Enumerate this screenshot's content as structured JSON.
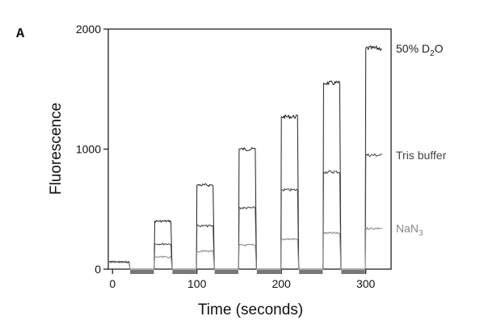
{
  "chart_data": {
    "type": "line",
    "panel_label": "A",
    "title": "",
    "xlabel": "Time (seconds)",
    "ylabel": "Fluorescence",
    "xlim": [
      -5,
      330
    ],
    "ylim": [
      0,
      2000
    ],
    "x_ticks": [
      0,
      100,
      200,
      300
    ],
    "y_ticks": [
      0,
      1000,
      2000
    ],
    "grid": false,
    "off_intervals": [
      [
        20,
        50
      ],
      [
        70,
        100
      ],
      [
        120,
        150
      ],
      [
        170,
        200
      ],
      [
        220,
        250
      ],
      [
        270,
        300
      ]
    ],
    "on_intervals": [
      [
        -5,
        20
      ],
      [
        50,
        70
      ],
      [
        100,
        120
      ],
      [
        150,
        170
      ],
      [
        200,
        220
      ],
      [
        250,
        270
      ],
      [
        300,
        320
      ]
    ],
    "series": [
      {
        "name": "50% D2O",
        "label_main": "50% D",
        "label_sub": "2",
        "label_tail": "O",
        "color": "#222222",
        "plateaus": [
          60,
          400,
          700,
          1000,
          1270,
          1550,
          1840
        ]
      },
      {
        "name": "Tris buffer",
        "label_main": "Tris buffer",
        "label_sub": "",
        "label_tail": "",
        "color": "#444444",
        "plateaus": [
          60,
          210,
          360,
          510,
          660,
          810,
          950
        ]
      },
      {
        "name": "NaN3",
        "label_main": "NaN",
        "label_sub": "3",
        "label_tail": "",
        "color": "#888888",
        "plateaus": [
          60,
          100,
          150,
          200,
          250,
          300,
          340
        ]
      }
    ]
  }
}
